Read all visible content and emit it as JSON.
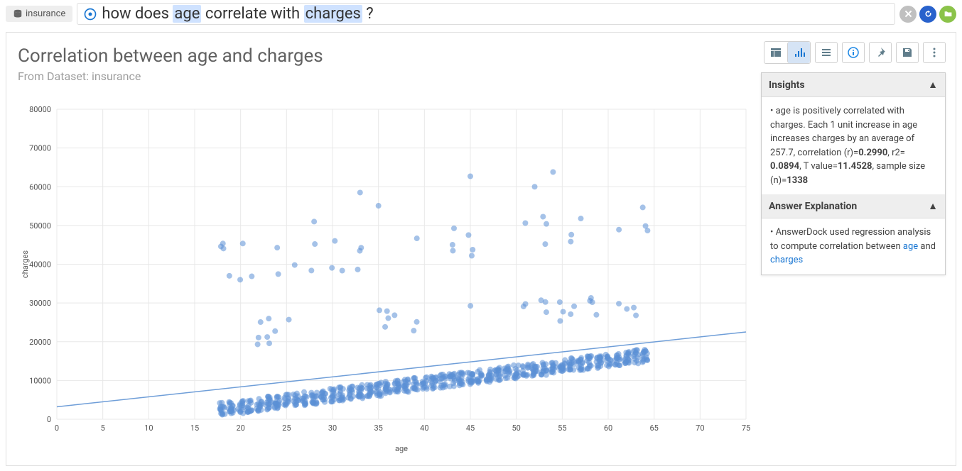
{
  "top": {
    "dataset_label": "insurance",
    "query_prefix": "how does ",
    "query_hl1": "age",
    "query_mid": " correlate with ",
    "query_hl2": "charges",
    "query_suffix": " ?"
  },
  "chart": {
    "title": "Correlation between age and charges",
    "subtitle": "From Dataset: insurance",
    "xlabel": "age",
    "ylabel": "charges",
    "xlim": [
      0,
      75
    ],
    "ylim": [
      0,
      80000
    ],
    "xtick_step": 5,
    "ytick_step": 10000,
    "point_color": "#5b8fd6",
    "point_opacity": 0.55,
    "point_radius": 4,
    "trend_color": "#6f9ed8",
    "grid_color": "#e8e8e8",
    "background": "#ffffff",
    "trend_intercept": 3200,
    "trend_slope": 257.7
  },
  "insights": {
    "hdr": "Insights",
    "text_pre": "• age is positively correlated with charges. Each 1 unit increase in age increases charges by an average of 257.7, correlation (r)=",
    "r": "0.2990",
    "mid1": ", r2= ",
    "r2": "0.0894",
    "mid2": ", T value=",
    "tval": "11.4528",
    "mid3": ", sample size (n)=",
    "n": "1338"
  },
  "explain": {
    "hdr": "Answer Explanation",
    "pre": "• AnswerDock used regression analysis to compute correlation between ",
    "link1": "age",
    "mid": " and ",
    "link2": "charges"
  },
  "colors": {
    "highlight_bg": "#cfe2ff"
  }
}
